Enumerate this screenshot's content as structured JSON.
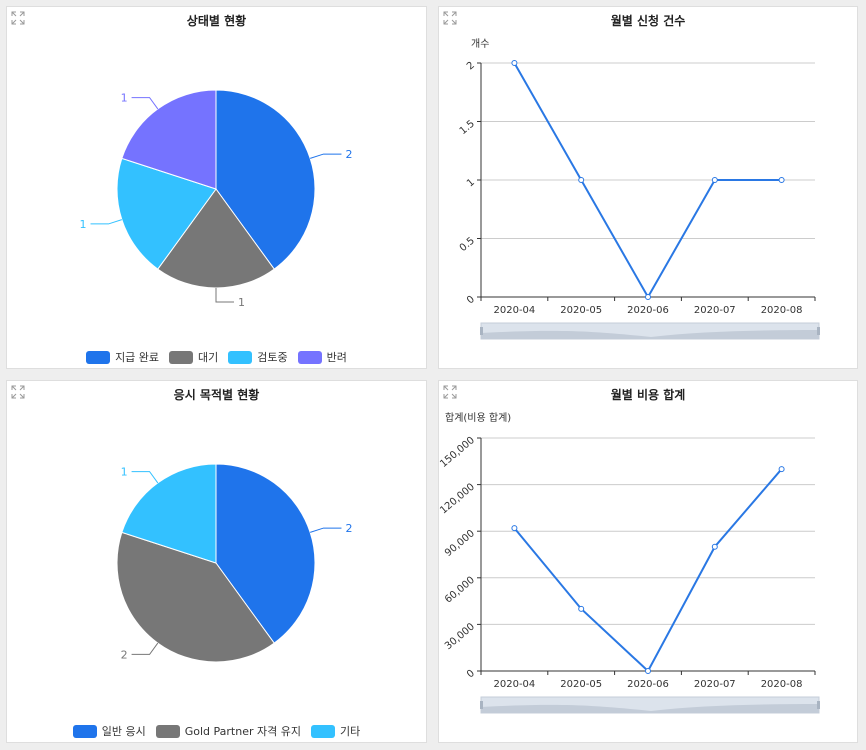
{
  "colors": {
    "blue": "#1f74eb",
    "gray": "#777777",
    "cyan": "#33c1ff",
    "purple": "#7573ff",
    "line": "#2a78e4",
    "grid": "#cccccc",
    "zoom_bg": "#dce3ec"
  },
  "icons": {
    "expand": "expand-arrows-icon"
  },
  "chart_data": [
    {
      "type": "pie",
      "title": "상태별 현황",
      "slices": [
        {
          "label": "지급 완료",
          "value": 2
        },
        {
          "label": "대기",
          "value": 1
        },
        {
          "label": "검토중",
          "value": 1
        },
        {
          "label": "반려",
          "value": 1
        }
      ],
      "legend": "bottom"
    },
    {
      "type": "line",
      "title": "월별 신청 건수",
      "ylabel": "개수",
      "categories": [
        "2020-04",
        "2020-05",
        "2020-06",
        "2020-07",
        "2020-08"
      ],
      "values": [
        2,
        1,
        0,
        1,
        1
      ],
      "ylim": [
        0,
        2
      ],
      "yticks": [
        0,
        0.5,
        1,
        1.5,
        2
      ],
      "ytick_labels": [
        "0",
        "0.5",
        "1",
        "1.5",
        "2"
      ],
      "grid": true
    },
    {
      "type": "pie",
      "title": "응시 목적별 현황",
      "slices": [
        {
          "label": "일반 응시",
          "value": 2
        },
        {
          "label": "Gold Partner 자격 유지",
          "value": 2
        },
        {
          "label": "기타",
          "value": 1
        }
      ],
      "legend": "bottom"
    },
    {
      "type": "line",
      "title": "월별 비용 합계",
      "ylabel": "합계(비용 합계)",
      "categories": [
        "2020-04",
        "2020-05",
        "2020-06",
        "2020-07",
        "2020-08"
      ],
      "values": [
        92000,
        40000,
        0,
        80000,
        130000
      ],
      "ylim": [
        0,
        150000
      ],
      "yticks": [
        0,
        30000,
        60000,
        90000,
        120000,
        150000
      ],
      "ytick_labels": [
        "0",
        "30,000",
        "60,000",
        "90,000",
        "120,000",
        "150,000"
      ],
      "grid": true
    }
  ]
}
